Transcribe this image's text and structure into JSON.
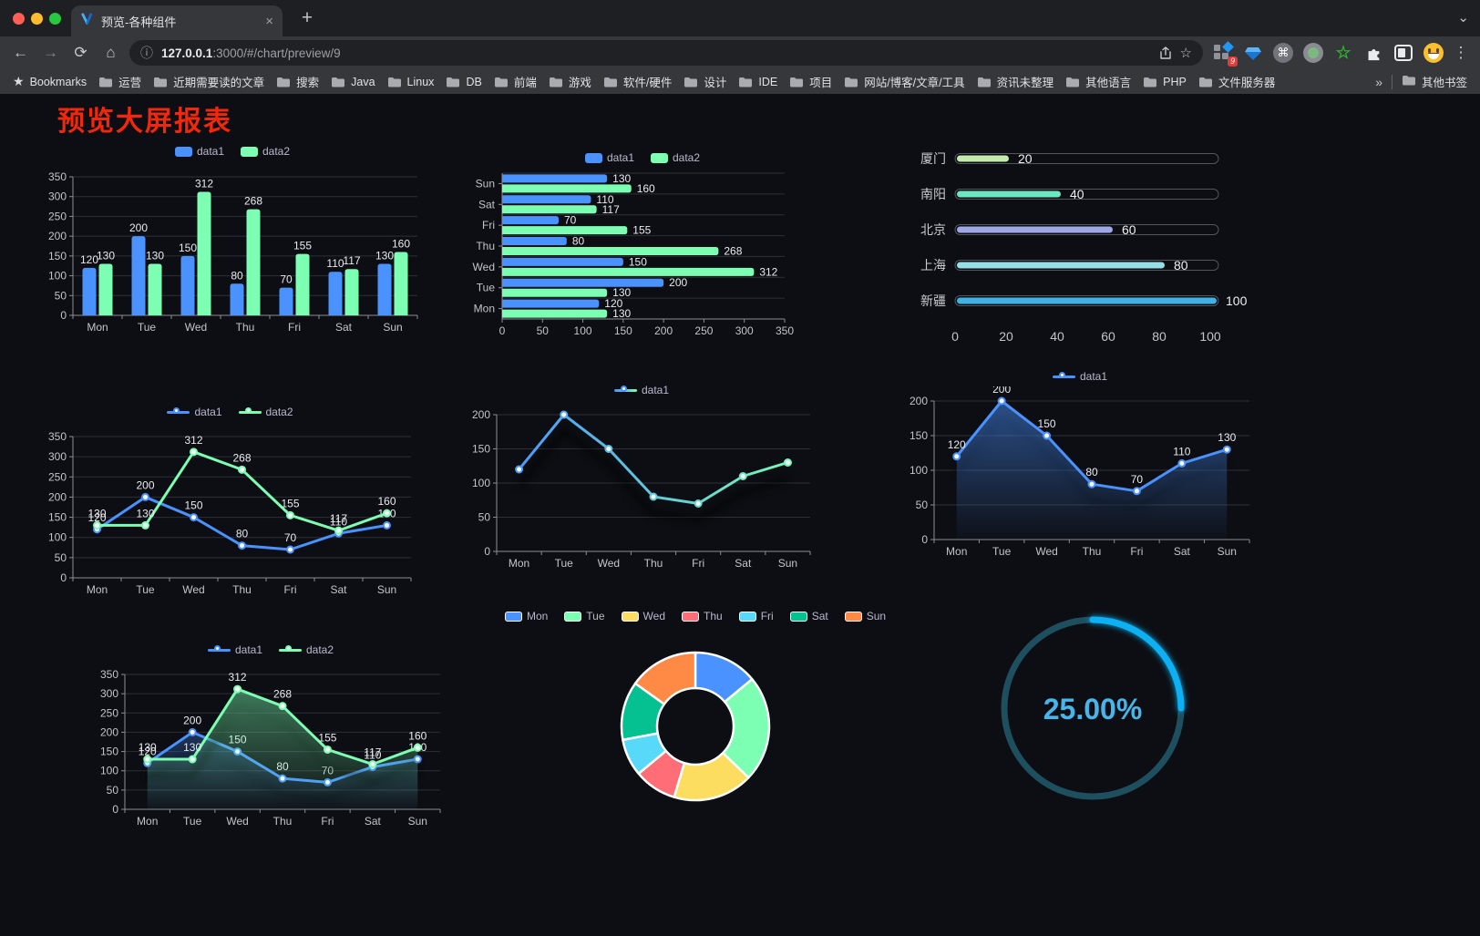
{
  "browser": {
    "tab": {
      "title": "预览-各种组件"
    },
    "icons": {
      "tab_close": "×",
      "new_tab": "+",
      "chevron_down": "⌄",
      "back": "←",
      "forward": "→",
      "reload": "⟳",
      "home": "⌂",
      "info": "ⓘ",
      "star_outline": "☆",
      "bookmarks_star": "★",
      "command": "⌘",
      "ext_star": "☆",
      "menu_dots": "⋮",
      "overflow": "»"
    },
    "url": {
      "host": "127.0.0.1",
      "rest": ":3000/#/chart/preview/9"
    },
    "extension_badge": "9",
    "bookmarks_label": "Bookmarks",
    "bookmarks": [
      "运营",
      "近期需要读的文章",
      "搜索",
      "Java",
      "Linux",
      "DB",
      "前端",
      "游戏",
      "软件/硬件",
      "设计",
      "IDE",
      "项目",
      "网站/博客/文章/工具",
      "资讯未整理",
      "其他语言",
      "PHP",
      "文件服务器"
    ],
    "other_bookmarks": "其他书签"
  },
  "page": {
    "title": "预览大屏报表",
    "title_color": "#f2270c",
    "background": "#0d0e13"
  },
  "palette": {
    "data1": "#4992ff",
    "data2": "#7cffb2"
  },
  "chart_data": [
    {
      "type": "bar",
      "legend": true,
      "legend_style": "rect",
      "categories": [
        "Mon",
        "Tue",
        "Wed",
        "Thu",
        "Fri",
        "Sat",
        "Sun"
      ],
      "series": [
        {
          "name": "data1",
          "color": "#4992ff",
          "values": [
            120,
            200,
            150,
            80,
            70,
            110,
            130
          ]
        },
        {
          "name": "data2",
          "color": "#7cffb2",
          "values": [
            130,
            130,
            312,
            268,
            155,
            117,
            160
          ]
        }
      ],
      "ylim": [
        0,
        350
      ],
      "ytick_step": 50,
      "value_labels": true,
      "grid": true,
      "legend_position": "top"
    },
    {
      "type": "hbar",
      "legend": true,
      "legend_style": "rect",
      "categories": [
        "Mon",
        "Tue",
        "Wed",
        "Thu",
        "Fri",
        "Sat",
        "Sun"
      ],
      "series": [
        {
          "name": "data1",
          "color": "#4992ff",
          "values": [
            120,
            200,
            150,
            80,
            70,
            110,
            130
          ]
        },
        {
          "name": "data2",
          "color": "#7cffb2",
          "values": [
            130,
            130,
            312,
            268,
            155,
            117,
            160
          ]
        }
      ],
      "xlim": [
        0,
        350
      ],
      "xtick_step": 50,
      "value_labels": true,
      "grid": true,
      "legend_position": "top"
    },
    {
      "type": "progress",
      "legend": false,
      "rows": [
        {
          "label": "厦门",
          "value": 20,
          "color": "#c4ebad"
        },
        {
          "label": "南阳",
          "value": 40,
          "color": "#6be6c1"
        },
        {
          "label": "北京",
          "value": 60,
          "color": "#a0a7e6"
        },
        {
          "label": "上海",
          "value": 80,
          "color": "#96dee8"
        },
        {
          "label": "新疆",
          "value": 100,
          "color": "#3fb1e3"
        }
      ],
      "xlim": [
        0,
        100
      ],
      "xticks": [
        0,
        20,
        40,
        60,
        80,
        100
      ]
    },
    {
      "type": "line",
      "legend": true,
      "legend_style": "line",
      "categories": [
        "Mon",
        "Tue",
        "Wed",
        "Thu",
        "Fri",
        "Sat",
        "Sun"
      ],
      "series": [
        {
          "name": "data1",
          "color": "#4992ff",
          "values": [
            120,
            200,
            150,
            80,
            70,
            110,
            130
          ]
        },
        {
          "name": "data2",
          "color": "#7cffb2",
          "values": [
            130,
            130,
            312,
            268,
            155,
            117,
            160
          ]
        }
      ],
      "ylim": [
        0,
        350
      ],
      "ytick_step": 50,
      "value_labels": true,
      "shadow": false,
      "grid": true
    },
    {
      "type": "line",
      "legend": true,
      "legend_style": "line",
      "categories": [
        "Mon",
        "Tue",
        "Wed",
        "Thu",
        "Fri",
        "Sat",
        "Sun"
      ],
      "series": [
        {
          "name": "data1",
          "gradient": [
            "#4992ff",
            "#7cffb2"
          ],
          "values": [
            120,
            200,
            150,
            80,
            70,
            110,
            130
          ]
        }
      ],
      "ylim": [
        0,
        200
      ],
      "ytick_step": 50,
      "value_labels": false,
      "shadow": true,
      "grid": true
    },
    {
      "type": "line",
      "legend": true,
      "legend_style": "line",
      "categories": [
        "Mon",
        "Tue",
        "Wed",
        "Thu",
        "Fri",
        "Sat",
        "Sun"
      ],
      "series": [
        {
          "name": "data1",
          "color": "#4992ff",
          "area": true,
          "values": [
            120,
            200,
            150,
            80,
            70,
            110,
            130
          ]
        }
      ],
      "ylim": [
        0,
        200
      ],
      "ytick_step": 50,
      "value_labels": true,
      "shadow": true,
      "grid": true
    },
    {
      "type": "line",
      "legend": true,
      "legend_style": "line",
      "categories": [
        "Mon",
        "Tue",
        "Wed",
        "Thu",
        "Fri",
        "Sat",
        "Sun"
      ],
      "series": [
        {
          "name": "data1",
          "color": "#4992ff",
          "area": true,
          "values": [
            120,
            200,
            150,
            80,
            70,
            110,
            130
          ]
        },
        {
          "name": "data2",
          "color": "#7cffb2",
          "area": true,
          "values": [
            130,
            130,
            312,
            268,
            155,
            117,
            160
          ]
        }
      ],
      "ylim": [
        0,
        350
      ],
      "ytick_step": 50,
      "value_labels": true,
      "shadow": true,
      "grid": true
    },
    {
      "type": "pie",
      "legend": true,
      "legend_style": "pie",
      "categories": [
        "Mon",
        "Tue",
        "Wed",
        "Thu",
        "Fri",
        "Sat",
        "Sun"
      ],
      "values": [
        120,
        200,
        150,
        80,
        70,
        110,
        130
      ],
      "colors": [
        "#4992ff",
        "#7cffb2",
        "#fddd60",
        "#ff6e76",
        "#58d9f9",
        "#05c091",
        "#ff8a45"
      ],
      "inner_radius": 42,
      "outer_radius": 81,
      "border_color": "#ffffff"
    },
    {
      "type": "gauge",
      "legend": false,
      "value": 25,
      "label": "25.00%",
      "color": "#10b1f3",
      "track_color": "#1d4f5e",
      "text_color": "#48b5ea"
    }
  ]
}
